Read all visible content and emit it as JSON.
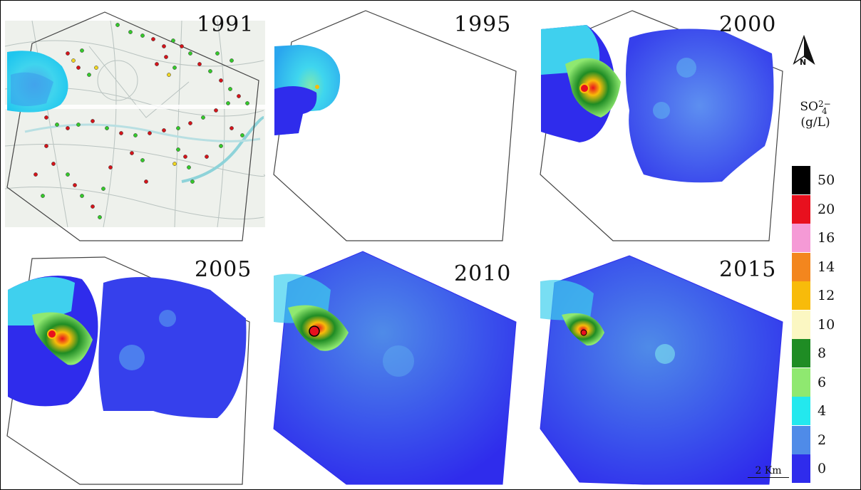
{
  "panels": [
    {
      "year": "1991"
    },
    {
      "year": "1995"
    },
    {
      "year": "2000"
    },
    {
      "year": "2005"
    },
    {
      "year": "2010"
    },
    {
      "year": "2015"
    }
  ],
  "legend": {
    "title_line1": "SO",
    "title_sub": "4",
    "title_sup": "2−",
    "title_line2": "(g/L)",
    "entries": [
      {
        "label": "50",
        "color": "#000000"
      },
      {
        "label": "20",
        "color": "#e8101e"
      },
      {
        "label": "16",
        "color": "#f59ad6"
      },
      {
        "label": "14",
        "color": "#f3861e"
      },
      {
        "label": "12",
        "color": "#f8bb0a"
      },
      {
        "label": "10",
        "color": "#fbf7c2"
      },
      {
        "label": "8",
        "color": "#1f8c24"
      },
      {
        "label": "6",
        "color": "#8fe870"
      },
      {
        "label": "4",
        "color": "#23e8ee"
      },
      {
        "label": "2",
        "color": "#4f8be8"
      },
      {
        "label": "0",
        "color": "#2f2cec"
      }
    ]
  },
  "north_arrow": {
    "label": "N",
    "icon": "north-arrow-icon"
  },
  "scale_bar": {
    "label": "2 Km"
  },
  "colors": {
    "background": "#2f2cec",
    "light": "#4f8be8",
    "cyan": "#23e8ee"
  }
}
